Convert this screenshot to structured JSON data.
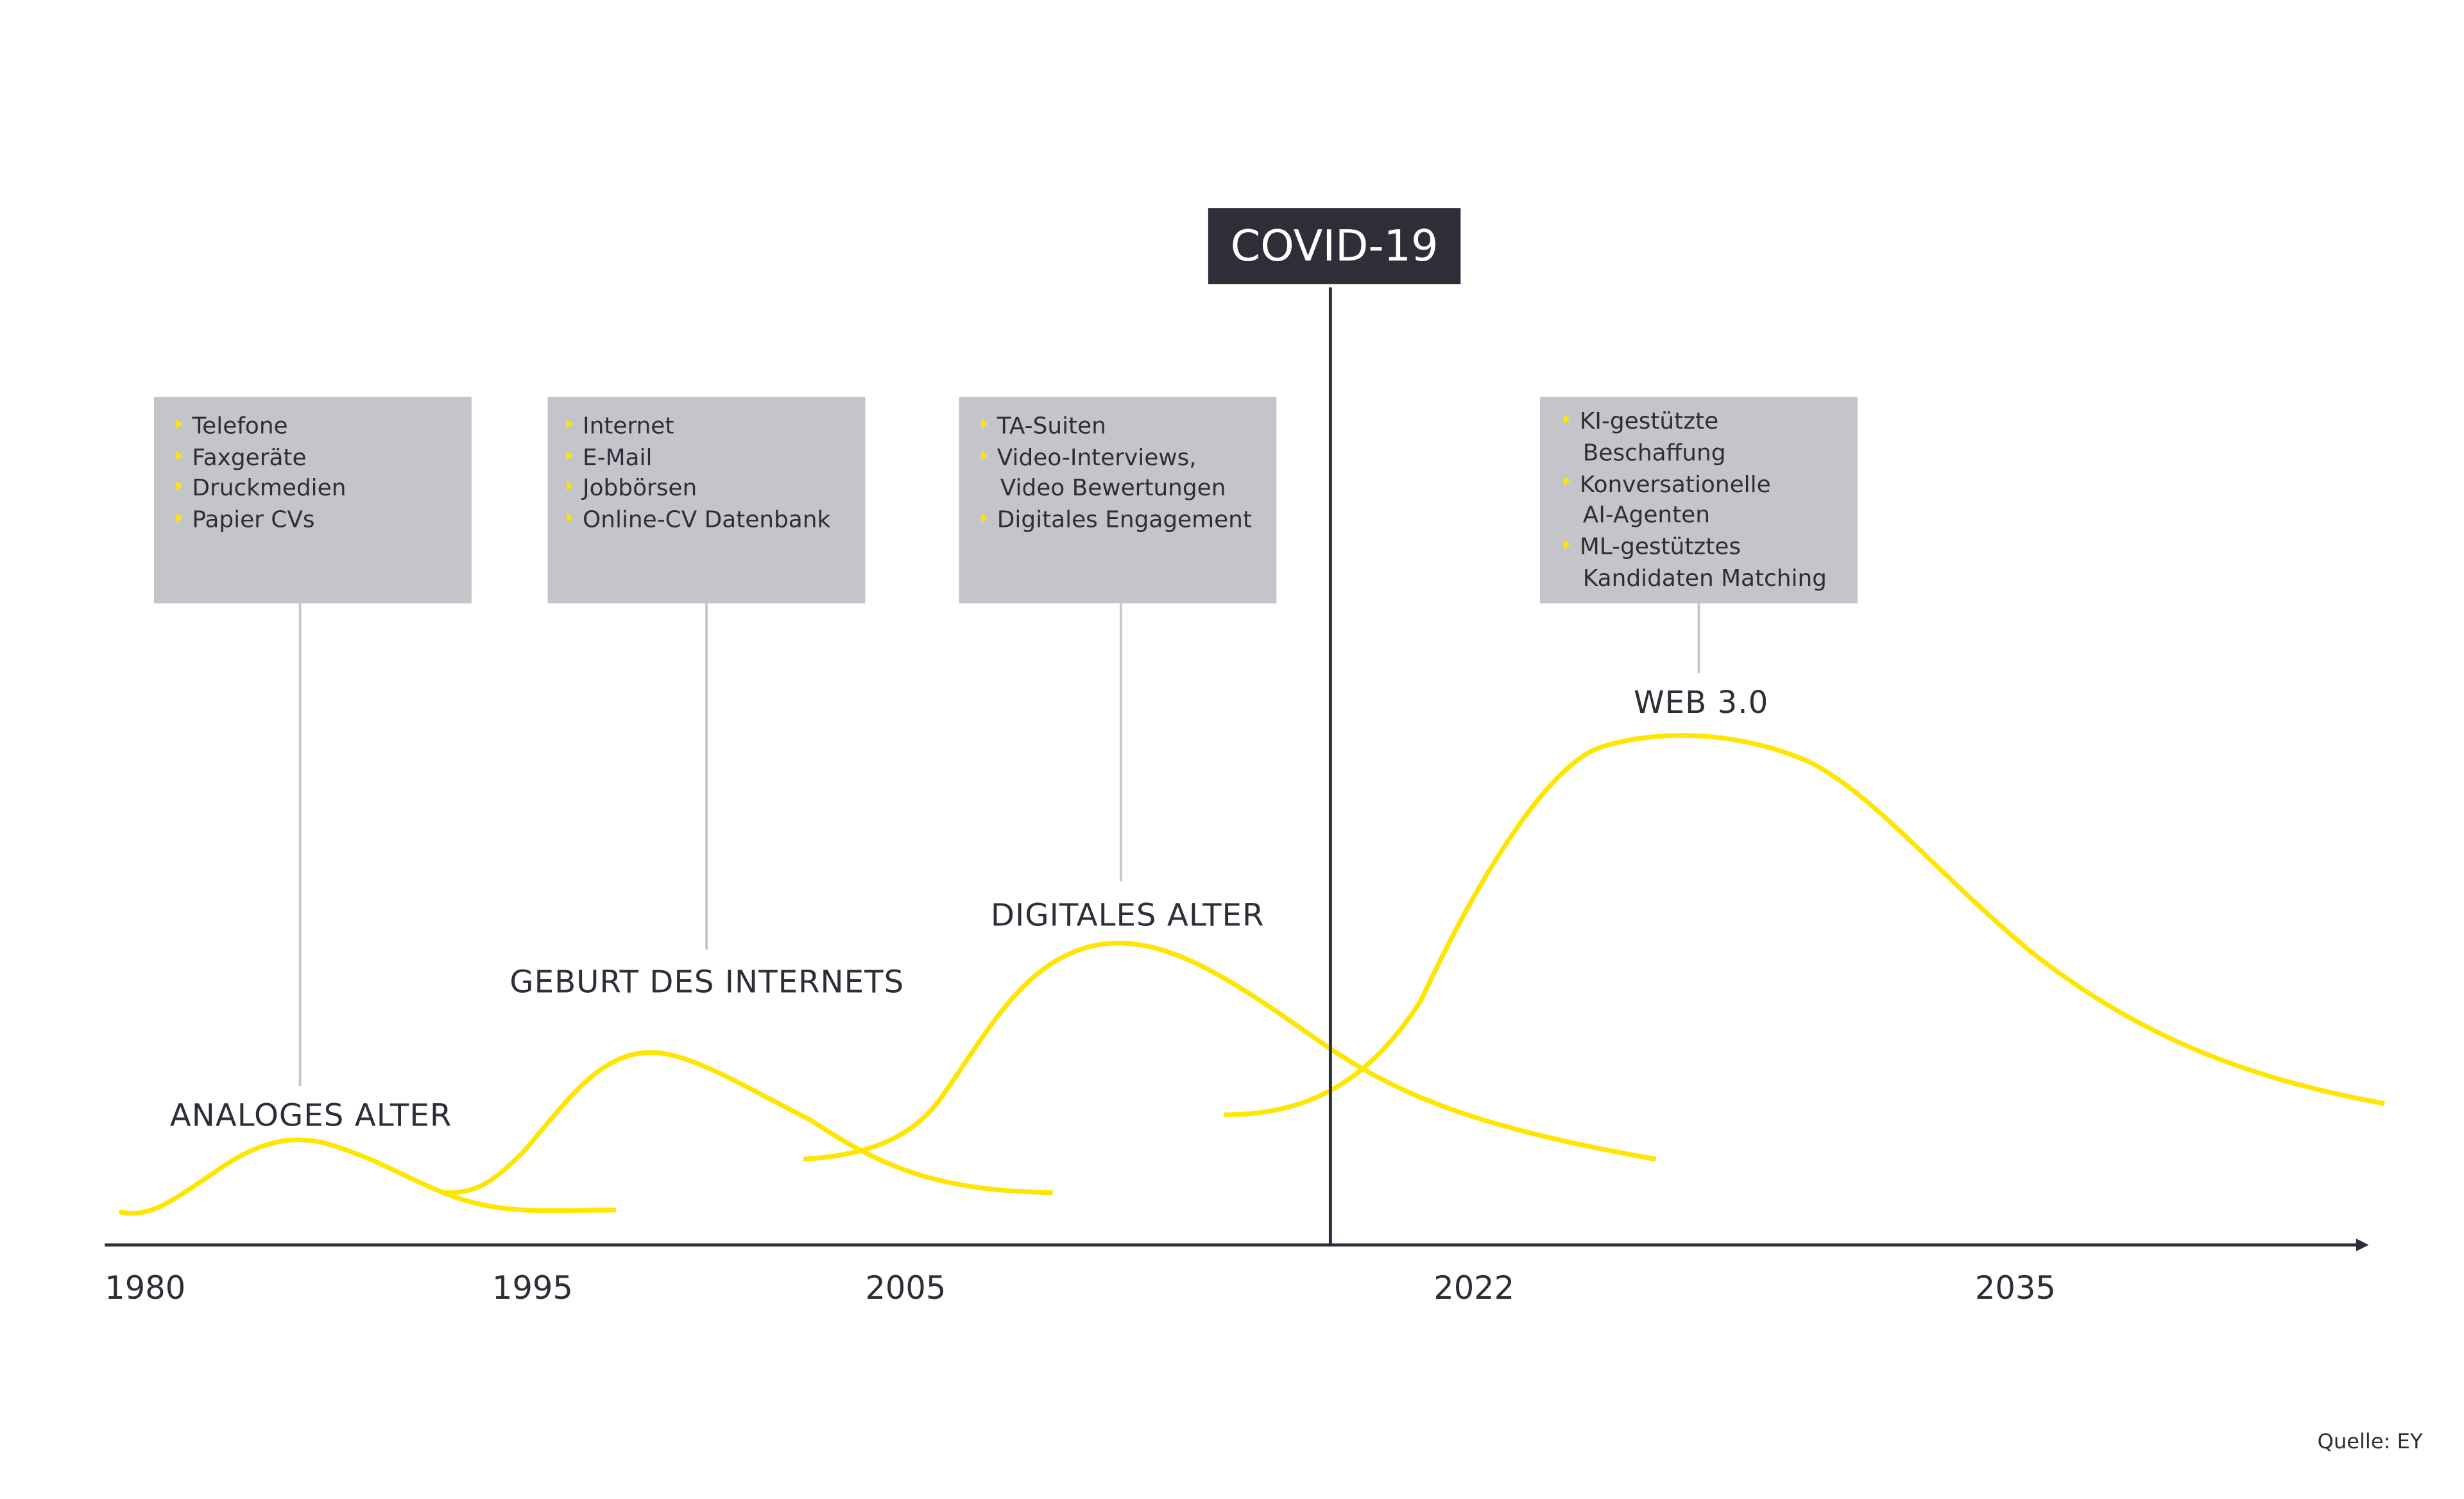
{
  "covid": {
    "label": "COVID-19"
  },
  "eras": [
    {
      "label": "ANALOGES ALTER",
      "items": [
        "Telefone",
        "Faxgeräte",
        "Druckmedien",
        "Papier CVs"
      ]
    },
    {
      "label": "GEBURT DES INTERNETS",
      "items": [
        "Internet",
        "E-Mail",
        "Jobbörsen",
        "Online-CV Datenbank"
      ]
    },
    {
      "label": "DIGITALES ALTER",
      "items": [
        "TA-Suiten",
        "Video-Interviews,",
        "Video Bewertungen",
        "Digitales Engagement"
      ]
    },
    {
      "label": "WEB 3.0",
      "items": [
        "KI-gestützte",
        "Beschaffung",
        "Konversationelle",
        "AI-Agenten",
        "ML-gestütztes",
        "Kandidaten Matching"
      ]
    }
  ],
  "axis": {
    "years": [
      "1980",
      "1995",
      "2005",
      "2022",
      "2035"
    ]
  },
  "source": "Quelle: EY",
  "colors": {
    "accent": "#ffe600",
    "dark": "#2e2e38",
    "box": "#c4c4cb"
  }
}
